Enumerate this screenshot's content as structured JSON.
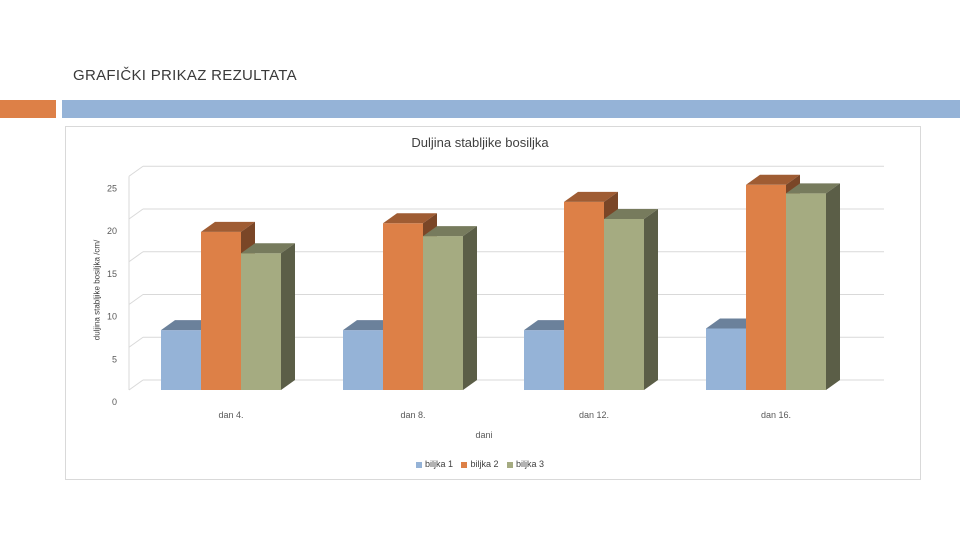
{
  "slide": {
    "title": "GRAFIČKI PRIKAZ REZULTATA"
  },
  "colors": {
    "accent_orange": "#dd8047",
    "accent_blue": "#95b3d7"
  },
  "chart_data": {
    "type": "bar",
    "style": "3d-clustered-column",
    "title": "Duljina stabljike bosiljka",
    "xlabel": "dani",
    "ylabel": "duljina stabljike bosiljka /cm/",
    "categories": [
      "dan 4.",
      "dan 8.",
      "dan 12.",
      "dan 16."
    ],
    "ylim": [
      0,
      25
    ],
    "yticks": [
      0,
      5,
      10,
      15,
      20,
      25
    ],
    "grid": true,
    "legend_position": "bottom",
    "series": [
      {
        "name": "biljka 1",
        "values": [
          7,
          7,
          7,
          7.2
        ],
        "color": "#95b3d7"
      },
      {
        "name": "biljka 2",
        "values": [
          18.5,
          19.5,
          22,
          24
        ],
        "color": "#dd8047"
      },
      {
        "name": "biljka 3",
        "values": [
          16,
          18,
          20,
          23
        ],
        "color": "#a5ab81"
      }
    ]
  }
}
